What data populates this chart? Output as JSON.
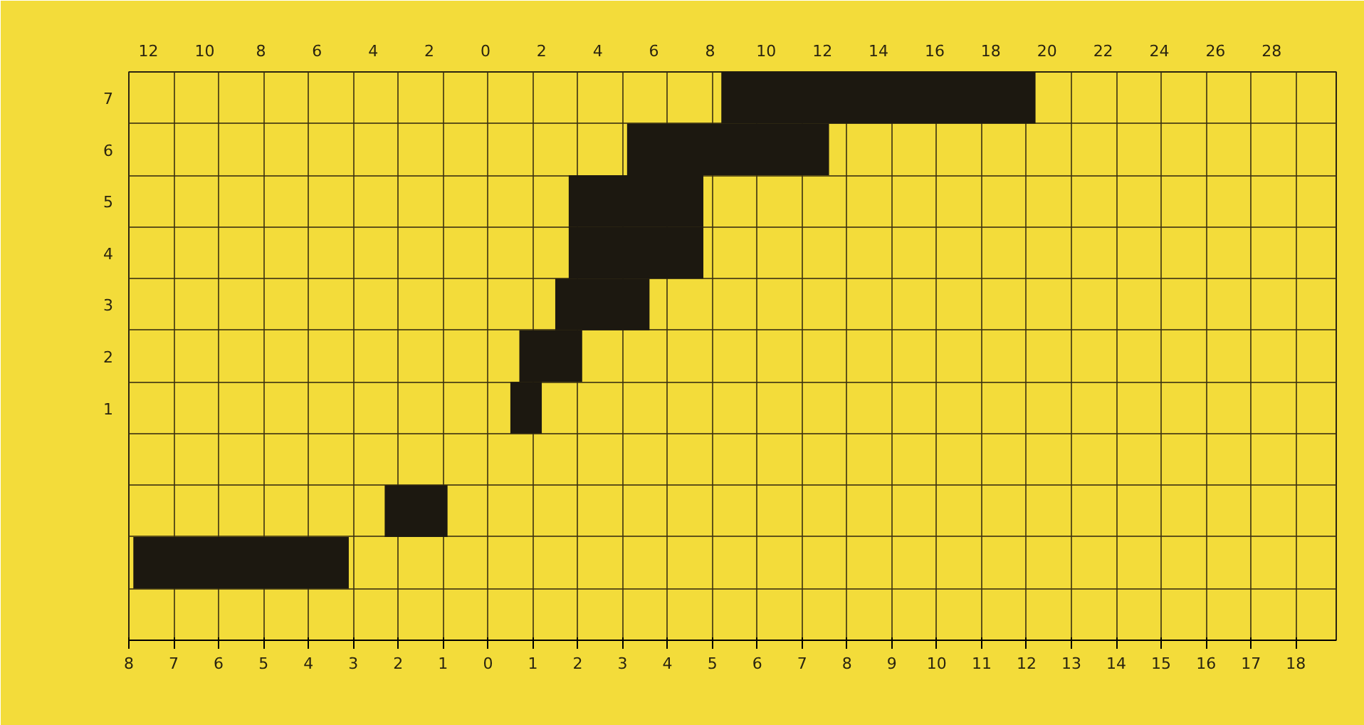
{
  "chart_data": {
    "type": "bar",
    "orientation": "horizontal",
    "grid": true,
    "color": "#1c1810",
    "categories": [
      "7",
      "6",
      "5",
      "4",
      "3",
      "2",
      "1",
      null,
      null,
      null,
      null
    ],
    "base": [
      5.2,
      3.1,
      1.8,
      1.8,
      1.5,
      0.7,
      0.5,
      null,
      -2.3,
      -7.9,
      null
    ],
    "values": [
      7,
      4.5,
      3,
      3,
      2.1,
      1.4,
      0.7,
      null,
      1.4,
      4.8,
      null
    ],
    "xlim": [
      -8,
      18.9
    ],
    "xticks": [
      {
        "value": -8,
        "label": "8"
      },
      {
        "value": -7,
        "label": "7"
      },
      {
        "value": -6,
        "label": "6"
      },
      {
        "value": -5,
        "label": "5"
      },
      {
        "value": -4,
        "label": "4"
      },
      {
        "value": -3,
        "label": "3"
      },
      {
        "value": -2,
        "label": "2"
      },
      {
        "value": -1,
        "label": "1"
      },
      0,
      1,
      2,
      3,
      4,
      5,
      6,
      7,
      8,
      9,
      10,
      11,
      12,
      13,
      14,
      15,
      16,
      17,
      18
    ],
    "x2lim": [
      -12.7,
      30.3
    ],
    "x2ticks": [
      {
        "value": -12,
        "label": "12"
      },
      {
        "value": -10,
        "label": "10"
      },
      {
        "value": -8,
        "label": "8"
      },
      {
        "value": -6,
        "label": "6"
      },
      {
        "value": -4,
        "label": "4"
      },
      {
        "value": -2,
        "label": "2"
      },
      0,
      2,
      4,
      6,
      8,
      10,
      12,
      14,
      16,
      18,
      20,
      22,
      24,
      26,
      28
    ]
  }
}
